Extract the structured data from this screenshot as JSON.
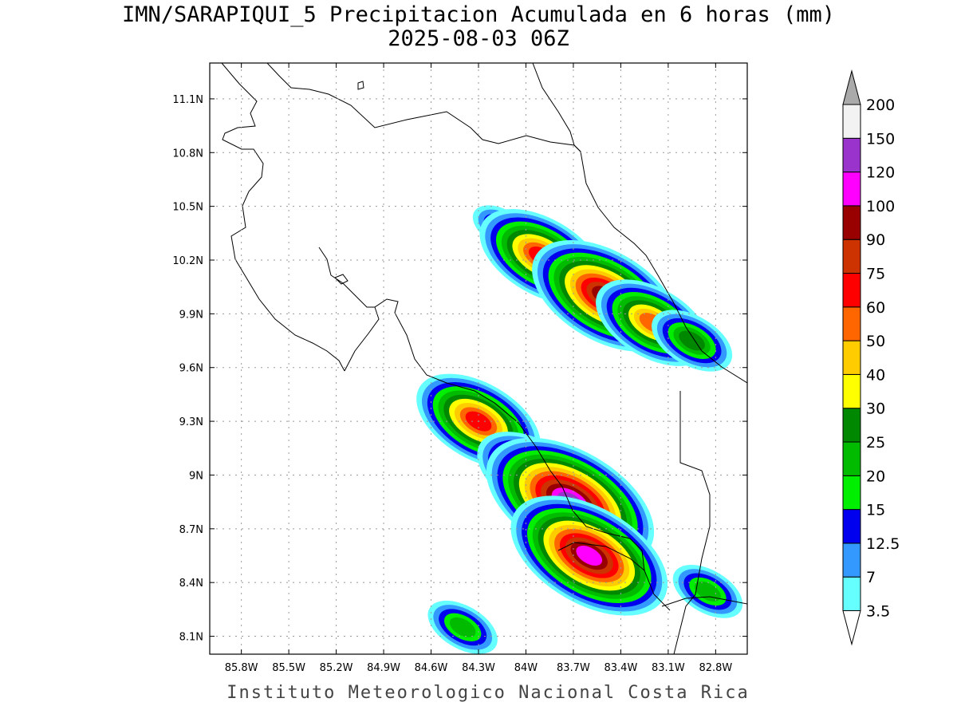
{
  "title": "IMN/SARAPIQUI_5 Precipitacion Acumulada en 6 horas (mm)",
  "subtitle": "2025-08-03 06Z",
  "footer": "Instituto Meteorologico Nacional Costa Rica",
  "map": {
    "lon_range": [
      -86.0,
      -82.6
    ],
    "lat_range": [
      8.0,
      11.3
    ],
    "lon_ticks": [
      "85.8W",
      "85.5W",
      "85.2W",
      "84.9W",
      "84.6W",
      "84.3W",
      "84W",
      "83.7W",
      "83.4W",
      "83.1W",
      "82.8W"
    ],
    "lon_values": [
      -85.8,
      -85.5,
      -85.2,
      -84.9,
      -84.6,
      -84.3,
      -84.0,
      -83.7,
      -83.4,
      -83.1,
      -82.8
    ],
    "lat_ticks": [
      "11.1N",
      "10.8N",
      "10.5N",
      "10.2N",
      "9.9N",
      "9.6N",
      "9.3N",
      "9N",
      "8.7N",
      "8.4N",
      "8.1N"
    ],
    "lat_values": [
      11.1,
      10.8,
      10.5,
      10.2,
      9.9,
      9.6,
      9.3,
      9.0,
      8.7,
      8.4,
      8.1
    ],
    "grid": true
  },
  "colorbar": {
    "labels": [
      "3.5",
      "7",
      "12.5",
      "15",
      "20",
      "25",
      "30",
      "40",
      "50",
      "60",
      "75",
      "90",
      "100",
      "120",
      "150",
      "200"
    ],
    "colors": [
      "#66ffff",
      "#3399ff",
      "#0000ee",
      "#00ee00",
      "#00bb00",
      "#008800",
      "#ffff00",
      "#ffcc00",
      "#ff6600",
      "#ff0000",
      "#cc3300",
      "#990000",
      "#ff00ff",
      "#9933cc",
      "#f2f2f2"
    ],
    "over_color": "#aaaaaa",
    "under_color": "#ffffff"
  },
  "precip_cells": [
    {
      "lon": -84.15,
      "lat": 10.38,
      "level": 3
    },
    {
      "lon": -83.9,
      "lat": 10.22,
      "level": 9
    },
    {
      "lon": -83.5,
      "lat": 10.0,
      "level": 11
    },
    {
      "lon": -83.2,
      "lat": 9.85,
      "level": 8
    },
    {
      "lon": -82.95,
      "lat": 9.75,
      "level": 5
    },
    {
      "lon": -84.3,
      "lat": 9.3,
      "level": 9
    },
    {
      "lon": -83.95,
      "lat": 9.0,
      "level": 8
    },
    {
      "lon": -83.72,
      "lat": 8.85,
      "level": 13
    },
    {
      "lon": -83.6,
      "lat": 8.55,
      "level": 12
    },
    {
      "lon": -82.85,
      "lat": 8.35,
      "level": 4
    },
    {
      "lon": -84.4,
      "lat": 8.15,
      "level": 4
    }
  ]
}
